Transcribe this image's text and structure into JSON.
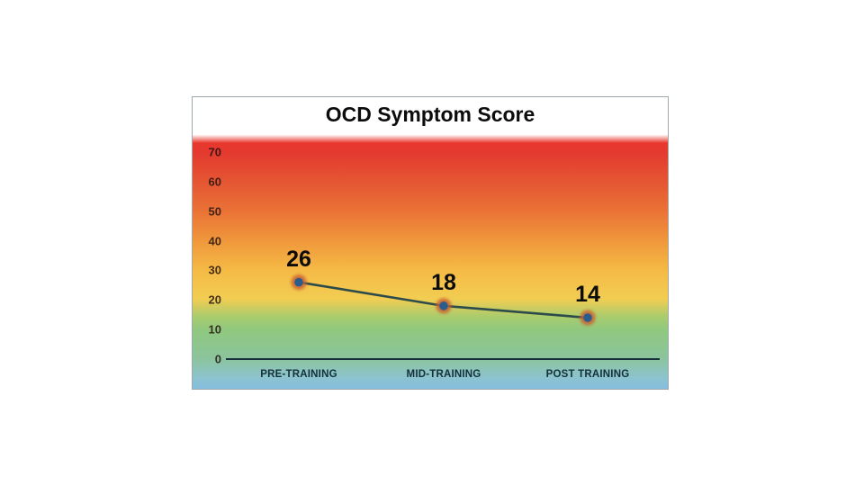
{
  "chart_data": {
    "type": "line",
    "title": "OCD Symptom Score",
    "categories": [
      "PRE-TRAINING",
      "MID-TRAINING",
      "POST TRAINING"
    ],
    "series": [
      {
        "name": "OCD Symptom Score",
        "values": [
          26,
          18,
          14
        ]
      }
    ],
    "data_labels": [
      "26",
      "18",
      "14"
    ],
    "y_ticks": [
      70,
      60,
      50,
      40,
      30,
      20,
      10,
      0
    ],
    "ylim": [
      0,
      77
    ],
    "xlabel": "",
    "ylabel": "",
    "grid": false,
    "legend": "none",
    "background_gradient": [
      "#e8382d",
      "#ea7236",
      "#f5ba45",
      "#f2cd52",
      "#90c87f",
      "#85bede"
    ],
    "colors": {
      "line": "#2d4b4a",
      "marker_fill": "#2b5c8e",
      "marker_ring": "#c96030",
      "axis_line": "#16303c",
      "tick_label": "#2e2422",
      "category_label": "#14303d",
      "value_label": "#0c0c0c",
      "title": "#0c0c0c",
      "card_border": "#9fa8ad",
      "title_background": "#ffffff",
      "page_background": "#ffffff"
    }
  }
}
